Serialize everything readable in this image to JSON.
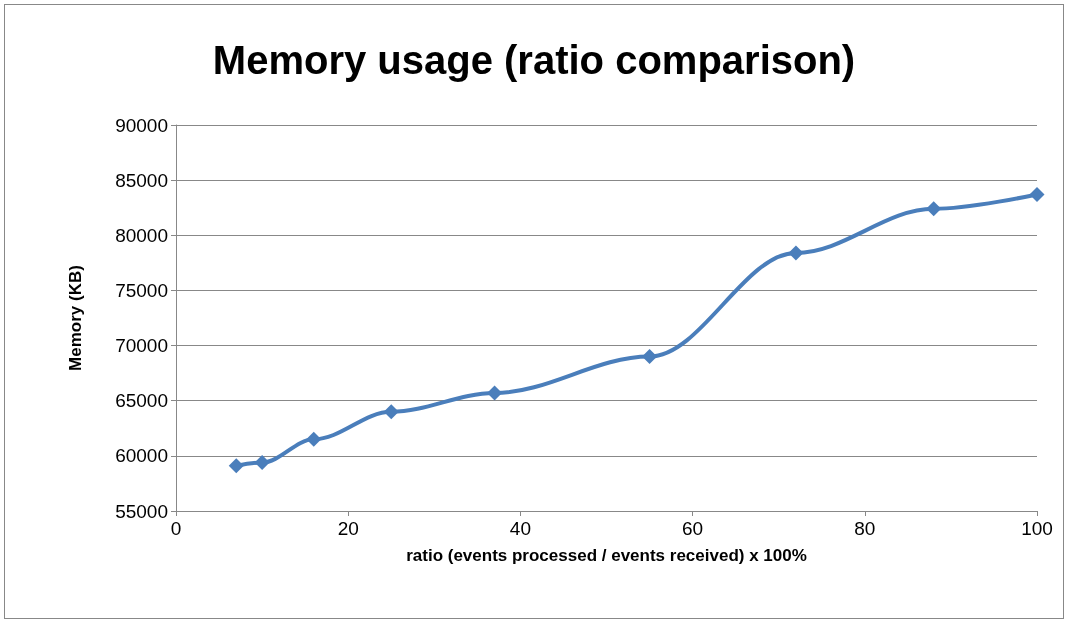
{
  "chart_data": {
    "type": "line",
    "title": "Memory usage (ratio comparison)",
    "xlabel": "ratio (events processed / events received) x 100%",
    "ylabel": "Memory (KB)",
    "x": [
      7,
      10,
      16,
      25,
      37,
      55,
      72,
      88,
      100
    ],
    "series": [
      {
        "color": "#4a7ebb",
        "values": [
          59100,
          59400,
          61500,
          64000,
          65700,
          69000,
          78400,
          82400,
          83700
        ]
      }
    ],
    "xlim": [
      0,
      100
    ],
    "xticks": [
      0,
      20,
      40,
      60,
      80,
      100
    ],
    "ylim": [
      55000,
      90000
    ],
    "yticks": [
      55000,
      60000,
      65000,
      70000,
      75000,
      80000,
      85000,
      90000
    ],
    "grid": "y",
    "marker": "diamond",
    "line_style": "solid"
  }
}
